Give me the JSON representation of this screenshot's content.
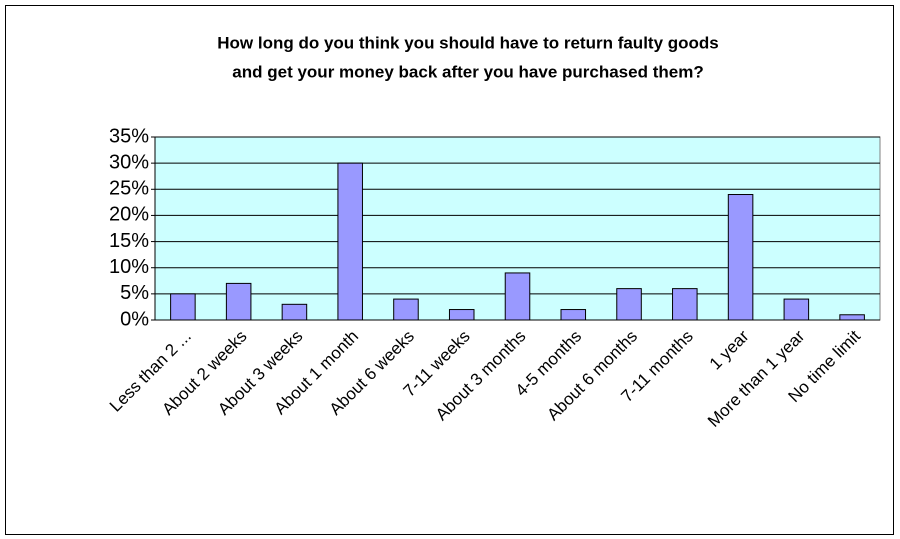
{
  "chart_data": {
    "type": "bar",
    "title": [
      "How long do you think you should have to return faulty goods",
      "and get your money back after you have purchased them?"
    ],
    "categories": [
      "Less than 2 ...",
      "About 2 weeks",
      "About 3 weeks",
      "About 1 month",
      "About 6 weeks",
      "7-11 weeks",
      "About 3 months",
      "4-5 months",
      "About 6 months",
      "7-11 months",
      "1 year",
      "More than 1 year",
      "No time limit"
    ],
    "values": [
      5,
      7,
      3,
      30,
      4,
      2,
      9,
      2,
      6,
      6,
      24,
      4,
      1
    ],
    "color": "#9999ff",
    "ylim": [
      0,
      35
    ],
    "yticks": [
      {
        "value": 0,
        "label": "0%"
      },
      {
        "value": 5,
        "label": "5%"
      },
      {
        "value": 10,
        "label": "10%"
      },
      {
        "value": 15,
        "label": "15%"
      },
      {
        "value": 20,
        "label": "20%"
      },
      {
        "value": 25,
        "label": "25%"
      },
      {
        "value": 30,
        "label": "30%"
      },
      {
        "value": 35,
        "label": "35%"
      }
    ],
    "grid": true
  }
}
